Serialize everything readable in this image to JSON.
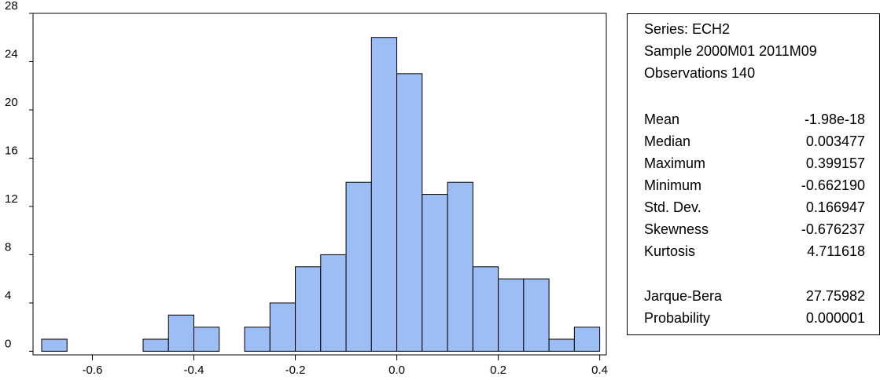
{
  "chart_data": {
    "type": "histogram",
    "bins": [
      -0.7,
      -0.65,
      -0.6,
      -0.55,
      -0.5,
      -0.45,
      -0.4,
      -0.35,
      -0.3,
      -0.25,
      -0.2,
      -0.15,
      -0.1,
      -0.05,
      0.0,
      0.05,
      0.1,
      0.15,
      0.2,
      0.25,
      0.3,
      0.35,
      0.4
    ],
    "values": [
      1,
      0,
      0,
      0,
      1,
      3,
      2,
      0,
      2,
      4,
      7,
      8,
      14,
      26,
      23,
      13,
      14,
      7,
      6,
      6,
      1,
      2
    ],
    "color": "#9dbdf5",
    "xlim": [
      -0.717,
      0.413
    ],
    "xticks": [
      -0.6,
      -0.4,
      -0.2,
      {
        "value": 0,
        "label": "0.0"
      },
      0.2,
      0.4
    ],
    "ylim": [
      -0.3,
      28
    ],
    "yticks": [
      0,
      4,
      8,
      12,
      16,
      20,
      24,
      28
    ]
  },
  "stats_panel": {
    "header": [
      "Series: ECH2",
      "Sample 2000M01 2011M09",
      "Observations 140"
    ],
    "stats": [
      {
        "label": "Mean",
        "value": "-1.98e-18"
      },
      {
        "label": "Median",
        "value": "0.003477"
      },
      {
        "label": "Maximum",
        "value": "0.399157"
      },
      {
        "label": "Minimum",
        "value": "-0.662190"
      },
      {
        "label": "Std. Dev.",
        "value": "0.166947"
      },
      {
        "label": "Skewness",
        "value": "-0.676237"
      },
      {
        "label": "Kurtosis",
        "value": "4.711618"
      }
    ],
    "tests": [
      {
        "label": "Jarque-Bera",
        "value": "27.75982"
      },
      {
        "label": "Probability",
        "value": "0.000001"
      }
    ]
  }
}
